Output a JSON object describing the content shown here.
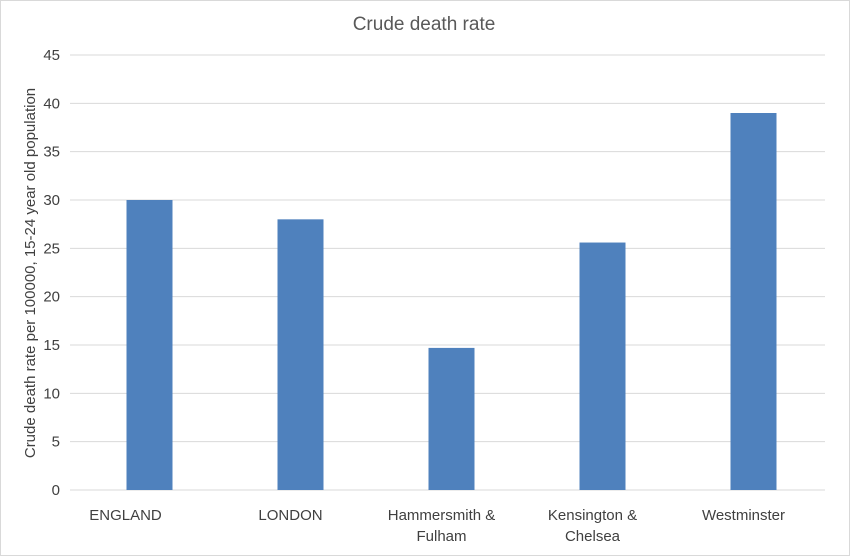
{
  "chart_data": {
    "type": "bar",
    "title": "Crude death rate",
    "ylabel": "Crude death rate per 100000, 15-24 year old population",
    "xlabel": "",
    "categories": [
      [
        "ENGLAND"
      ],
      [
        "LONDON"
      ],
      [
        "Hammersmith &",
        "Fulham"
      ],
      [
        "Kensington &",
        "Chelsea"
      ],
      [
        "Westminster"
      ]
    ],
    "values": [
      30,
      28,
      14.7,
      25.6,
      39
    ],
    "ylim": [
      0,
      45
    ],
    "yticks": [
      "0",
      "5",
      "10",
      "15",
      "20",
      "25",
      "30",
      "35",
      "40",
      "45"
    ],
    "bar_color": "#4f81bd",
    "grid": true,
    "legend": "none"
  }
}
